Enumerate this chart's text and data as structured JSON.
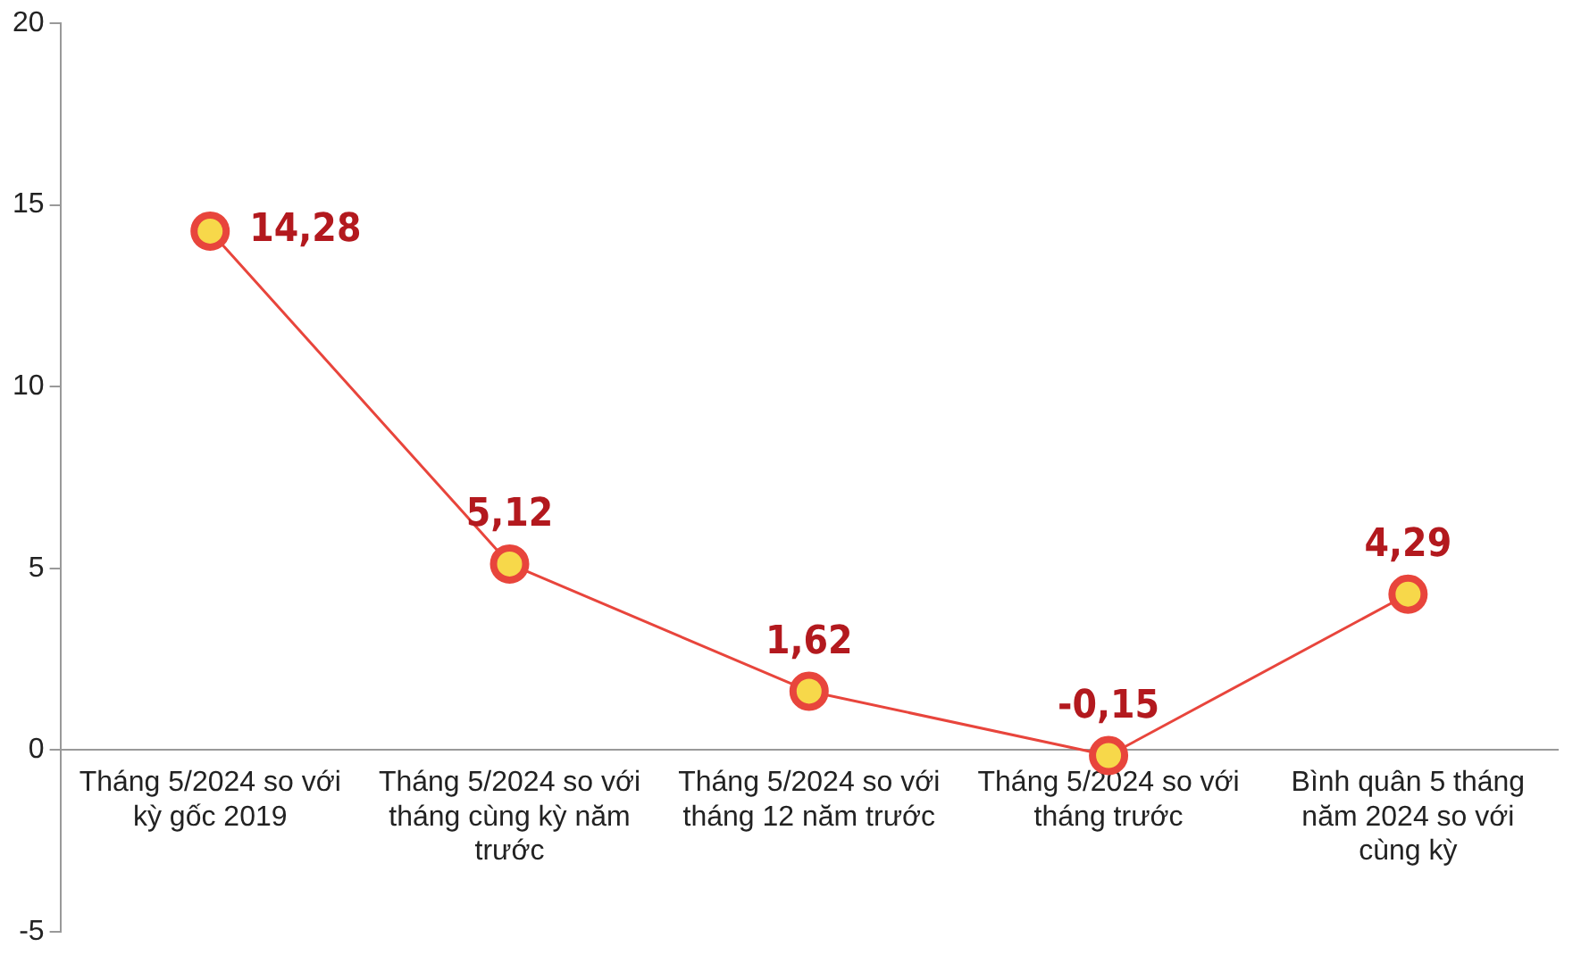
{
  "chart_data": {
    "type": "line",
    "categories": [
      "Tháng 5/2024 so với kỳ gốc 2019",
      "Tháng 5/2024 so với tháng cùng kỳ năm trước",
      "Tháng 5/2024 so với tháng 12 năm trước",
      "Tháng 5/2024 so với tháng trước",
      "Bình quân 5 tháng năm 2024 so với cùng kỳ"
    ],
    "series": [
      {
        "color": "#e8453c",
        "values": [
          14.28,
          5.12,
          1.62,
          -0.15,
          4.29
        ],
        "value_labels": [
          "14,28",
          "5,12",
          "1,62",
          "-0,15",
          "4,29"
        ]
      }
    ],
    "ylim": [
      -5,
      20
    ],
    "yticks": [
      -5,
      0,
      5,
      10,
      15,
      20
    ],
    "grid": false,
    "legend": false,
    "marker": "circle"
  }
}
